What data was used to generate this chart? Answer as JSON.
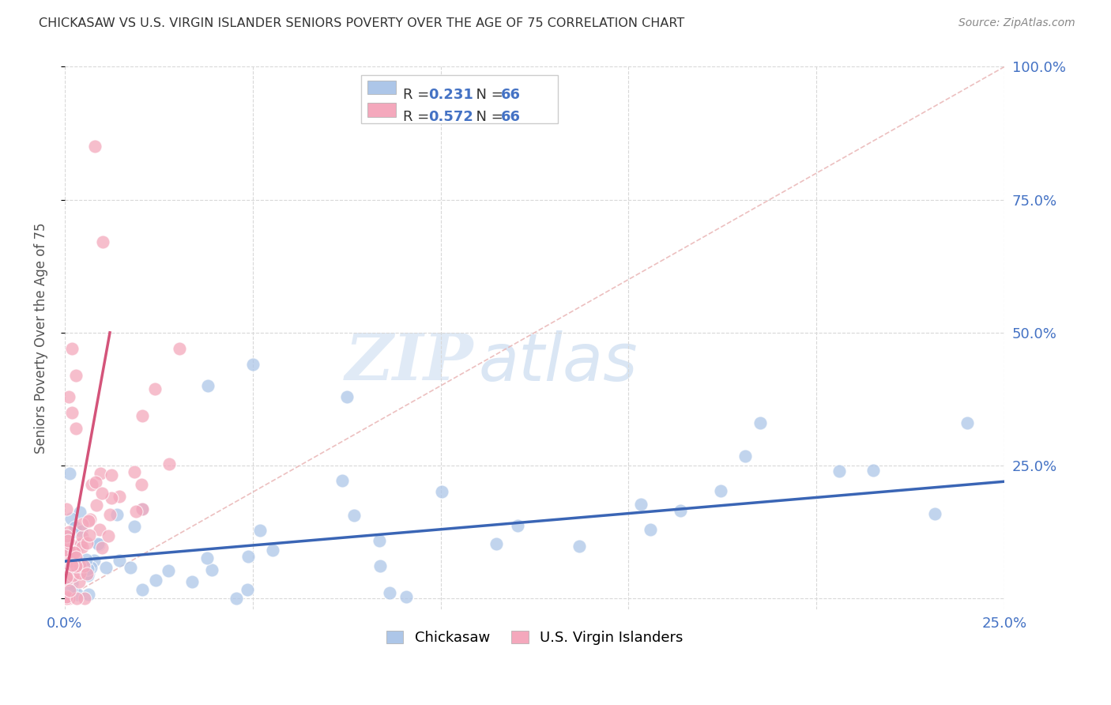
{
  "title": "CHICKASAW VS U.S. VIRGIN ISLANDER SENIORS POVERTY OVER THE AGE OF 75 CORRELATION CHART",
  "source": "Source: ZipAtlas.com",
  "ylabel": "Seniors Poverty Over the Age of 75",
  "xlim": [
    0.0,
    0.25
  ],
  "ylim": [
    -0.02,
    1.0
  ],
  "xticks": [
    0.0,
    0.05,
    0.1,
    0.15,
    0.2,
    0.25
  ],
  "xticklabels": [
    "0.0%",
    "",
    "",
    "",
    "",
    "25.0%"
  ],
  "yticks": [
    0.0,
    0.25,
    0.5,
    0.75,
    1.0
  ],
  "right_yticklabels": [
    "",
    "25.0%",
    "50.0%",
    "75.0%",
    "100.0%"
  ],
  "chickasaw_label": "Chickasaw",
  "vi_label": "U.S. Virgin Islanders",
  "chickasaw_color": "#adc6e8",
  "vi_color": "#f4a8bc",
  "chickasaw_R": 0.231,
  "vi_R": 0.572,
  "N": 66,
  "chickasaw_line_color": "#3a65b5",
  "vi_line_color": "#d4547a",
  "diag_color": "#d8a8a8",
  "watermark_zip": "ZIP",
  "watermark_atlas": "atlas",
  "watermark_color_zip": "#c5d8ee",
  "watermark_color_atlas": "#b8cce0",
  "background_color": "#ffffff",
  "grid_color": "#d8d8d8",
  "axis_label_color": "#4472c4",
  "title_color": "#333333",
  "source_color": "#888888",
  "legend_R_color": "#4472c4",
  "legend_N_color": "#4472c4"
}
